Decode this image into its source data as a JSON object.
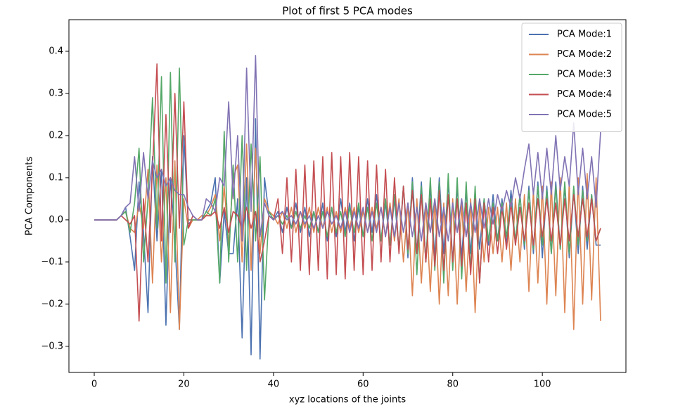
{
  "chart_data": {
    "type": "line",
    "title": "Plot of first 5 PCA modes",
    "x_label": "xyz locations of the joints",
    "y_label": "PCA Components",
    "x": [
      0,
      1,
      2,
      3,
      4,
      5,
      6,
      7,
      8,
      9,
      10,
      11,
      12,
      13,
      14,
      15,
      16,
      17,
      18,
      19,
      20,
      21,
      22,
      23,
      24,
      25,
      26,
      27,
      28,
      29,
      30,
      31,
      32,
      33,
      34,
      35,
      36,
      37,
      38,
      39,
      40,
      41,
      42,
      43,
      44,
      45,
      46,
      47,
      48,
      49,
      50,
      51,
      52,
      53,
      54,
      55,
      56,
      57,
      58,
      59,
      60,
      61,
      62,
      63,
      64,
      65,
      66,
      67,
      68,
      69,
      70,
      71,
      72,
      73,
      74,
      75,
      76,
      77,
      78,
      79,
      80,
      81,
      82,
      83,
      84,
      85,
      86,
      87,
      88,
      89,
      90,
      91,
      92,
      93,
      94,
      95,
      96,
      97,
      98,
      99,
      100,
      101,
      102,
      103,
      104,
      105,
      106,
      107,
      108,
      109,
      110,
      111,
      112,
      113
    ],
    "xlim": [
      -5.65,
      118.65
    ],
    "xticks": [
      0,
      20,
      40,
      60,
      80,
      100
    ],
    "ylim": [
      -0.362,
      0.475
    ],
    "yticks": [
      {
        "value": -0.3,
        "label": "−0.3"
      },
      {
        "value": -0.2,
        "label": "−0.2"
      },
      {
        "value": -0.1,
        "label": "−0.1"
      },
      {
        "value": 0,
        "label": "0.0"
      },
      0.1,
      0.2,
      0.3,
      0.4
    ],
    "legend": "upper right",
    "series": [
      {
        "name": "PCA Mode:1",
        "color": "#4c72b0",
        "values": [
          0,
          0,
          0,
          0,
          0,
          0,
          0.01,
          0.03,
          -0.04,
          -0.12,
          0.09,
          -0.03,
          -0.22,
          0.15,
          -0.05,
          0.12,
          -0.25,
          0.1,
          -0.05,
          -0.26,
          0.2,
          -0.01,
          0,
          0,
          0,
          0.02,
          0.04,
          0.1,
          -0.15,
          0.02,
          -0.08,
          -0.08,
          0.05,
          -0.28,
          0.1,
          -0.32,
          0.24,
          -0.33,
          0.1,
          0.01,
          0,
          0.02,
          -0.03,
          0.03,
          -0.02,
          0.04,
          -0.03,
          0.03,
          -0.04,
          0.02,
          -0.03,
          0.04,
          -0.05,
          0.03,
          -0.04,
          0.05,
          -0.03,
          0.04,
          -0.05,
          0.03,
          -0.04,
          0.05,
          -0.03,
          0.06,
          -0.05,
          0.04,
          -0.06,
          0.05,
          -0.07,
          0.08,
          -0.09,
          0.1,
          -0.08,
          0.09,
          -0.1,
          0.08,
          -0.09,
          0.1,
          -0.08,
          0.09,
          -0.1,
          0.08,
          -0.09,
          0.07,
          -0.08,
          0.06,
          -0.07,
          0.05,
          -0.06,
          0.06,
          -0.05,
          0.05,
          -0.06,
          0.07,
          -0.06,
          0.06,
          -0.07,
          0.08,
          -0.08,
          0.09,
          -0.09,
          0.08,
          -0.08,
          0.09,
          -0.07,
          0.08,
          -0.09,
          0.07,
          -0.08,
          0.08,
          -0.07,
          0.06,
          -0.06,
          -0.06
        ]
      },
      {
        "name": "PCA Mode:2",
        "color": "#dd8452",
        "values": [
          0,
          0,
          0,
          0,
          0,
          0,
          0.01,
          0.02,
          -0.02,
          -0.03,
          0.04,
          -0.02,
          0.12,
          -0.15,
          0.13,
          -0.1,
          0.1,
          -0.22,
          0.14,
          -0.26,
          0.05,
          -0.02,
          0,
          0,
          0.01,
          0.01,
          0.03,
          0.06,
          -0.05,
          0.08,
          -0.06,
          0.1,
          0.13,
          -0.1,
          0.18,
          -0.12,
          0.17,
          -0.08,
          0.05,
          0.02,
          0.01,
          -0.01,
          0.02,
          -0.02,
          0.03,
          -0.03,
          0.02,
          -0.02,
          0.03,
          -0.03,
          0.03,
          -0.02,
          0.03,
          -0.03,
          0.02,
          -0.03,
          0.03,
          -0.02,
          0.03,
          -0.03,
          0.02,
          -0.03,
          0.03,
          -0.02,
          0.03,
          -0.04,
          0.04,
          -0.05,
          0.05,
          -0.1,
          0.04,
          -0.18,
          0.05,
          -0.15,
          0.04,
          -0.17,
          0.05,
          -0.2,
          0.04,
          -0.18,
          0.05,
          -0.2,
          0.04,
          -0.17,
          0.05,
          -0.22,
          0.04,
          -0.1,
          0.03,
          -0.08,
          0.03,
          -0.1,
          0.04,
          -0.12,
          0.05,
          -0.1,
          0.06,
          -0.17,
          0.07,
          -0.15,
          0.08,
          -0.2,
          0.09,
          -0.18,
          0.1,
          -0.22,
          0.09,
          -0.26,
          0.1,
          -0.2,
          0.11,
          -0.19,
          0.1,
          -0.24
        ]
      },
      {
        "name": "PCA Mode:3",
        "color": "#55a868",
        "values": [
          0,
          0,
          0,
          0,
          0,
          0,
          0.01,
          0.02,
          -0.03,
          0.04,
          0.17,
          -0.1,
          0.05,
          0.29,
          -0.02,
          0.34,
          -0.15,
          0.35,
          -0.1,
          0.36,
          -0.06,
          0,
          0,
          0,
          0,
          0.02,
          0.01,
          0.05,
          -0.15,
          0.21,
          -0.1,
          0.13,
          -0.1,
          0.2,
          -0.12,
          0.18,
          -0.05,
          0.15,
          -0.19,
          0.02,
          0,
          0.01,
          -0.01,
          0.01,
          -0.02,
          0.02,
          -0.02,
          0.01,
          -0.02,
          0.02,
          -0.03,
          0.02,
          -0.04,
          0.03,
          -0.03,
          0.02,
          -0.04,
          0.03,
          -0.03,
          0.04,
          -0.04,
          0.03,
          -0.05,
          0.04,
          -0.05,
          0.05,
          -0.06,
          0.06,
          -0.07,
          0.08,
          -0.08,
          0.09,
          -0.13,
          0.08,
          -0.1,
          0.1,
          -0.12,
          0.09,
          -0.15,
          0.11,
          -0.12,
          0.1,
          -0.14,
          0.09,
          -0.12,
          0.08,
          -0.15,
          0.05,
          -0.05,
          0.04,
          -0.05,
          0.04,
          -0.04,
          0.05,
          -0.05,
          0.06,
          -0.06,
          0.07,
          -0.07,
          0.08,
          -0.06,
          0.07,
          -0.08,
          0.08,
          -0.07,
          0.09,
          -0.08,
          0.08,
          -0.06,
          0.07,
          -0.05,
          0.06,
          -0.05,
          -0.02
        ]
      },
      {
        "name": "PCA Mode:4",
        "color": "#c44e52",
        "values": [
          0,
          0,
          0,
          0,
          0,
          0,
          0.01,
          0,
          -0.01,
          0.01,
          -0.24,
          0.05,
          -0.1,
          0.12,
          0.37,
          -0.05,
          0.25,
          -0.03,
          0.3,
          -0.02,
          0.28,
          -0.02,
          0.01,
          0,
          0,
          0.01,
          0.01,
          0.02,
          -0.02,
          0.03,
          -0.03,
          0.02,
          0.01,
          -0.02,
          0.03,
          -0.02,
          0.02,
          -0.1,
          -0.05,
          0.01,
          0,
          0.05,
          -0.08,
          0.1,
          -0.1,
          0.12,
          -0.12,
          0.13,
          -0.13,
          0.14,
          -0.12,
          0.15,
          -0.14,
          0.16,
          -0.13,
          0.15,
          -0.14,
          0.16,
          -0.12,
          0.15,
          -0.13,
          0.14,
          -0.12,
          0.13,
          -0.1,
          0.12,
          -0.1,
          0.1,
          -0.08,
          0.08,
          -0.07,
          0.07,
          -0.08,
          0.06,
          -0.1,
          0.05,
          -0.11,
          0.07,
          -0.12,
          0.06,
          -0.1,
          0.05,
          -0.11,
          0.04,
          -0.13,
          0.05,
          -0.15,
          0.04,
          -0.1,
          0.03,
          -0.08,
          0.03,
          -0.07,
          0.04,
          -0.06,
          0.03,
          -0.05,
          0.04,
          -0.06,
          0.05,
          -0.04,
          0.05,
          -0.05,
          0.04,
          -0.06,
          0.05,
          -0.05,
          0.06,
          -0.04,
          0.05,
          -0.04,
          0.05,
          -0.05,
          -0.02
        ]
      },
      {
        "name": "PCA Mode:5",
        "color": "#8172b3",
        "values": [
          0,
          0,
          0,
          0,
          0,
          0,
          0.01,
          0.03,
          0.04,
          0.15,
          0.02,
          0.16,
          0.05,
          0.14,
          0.1,
          0.12,
          0.08,
          0.1,
          0.07,
          0.06,
          0.06,
          0.03,
          0.01,
          0,
          0,
          0.05,
          0.04,
          0.02,
          0.1,
          0.08,
          0.28,
          0.05,
          0.2,
          -0.05,
          0.36,
          0.02,
          0.39,
          -0.04,
          0.04,
          0.01,
          0,
          0.01,
          0.02,
          0,
          0.01,
          -0.01,
          0.02,
          -0.01,
          0.01,
          -0.02,
          0.01,
          -0.02,
          0.02,
          -0.01,
          0.01,
          -0.02,
          0.02,
          -0.03,
          0.02,
          -0.02,
          0.03,
          -0.03,
          0.02,
          -0.03,
          0.03,
          -0.04,
          0.03,
          -0.04,
          0.04,
          -0.03,
          0.04,
          -0.04,
          0.03,
          -0.05,
          0.04,
          -0.03,
          0.05,
          -0.04,
          0.03,
          -0.05,
          0.04,
          -0.03,
          0.05,
          -0.04,
          0.04,
          -0.03,
          0.05,
          -0.02,
          0.05,
          -0.01,
          0.06,
          0.02,
          0.07,
          0.03,
          0.1,
          0.05,
          0.12,
          0.18,
          0.06,
          0.16,
          0.05,
          0.17,
          0.06,
          0.2,
          0.07,
          0.15,
          0.08,
          0.23,
          0.06,
          0.17,
          0.05,
          0.15,
          0.03,
          0.21
        ]
      }
    ]
  }
}
